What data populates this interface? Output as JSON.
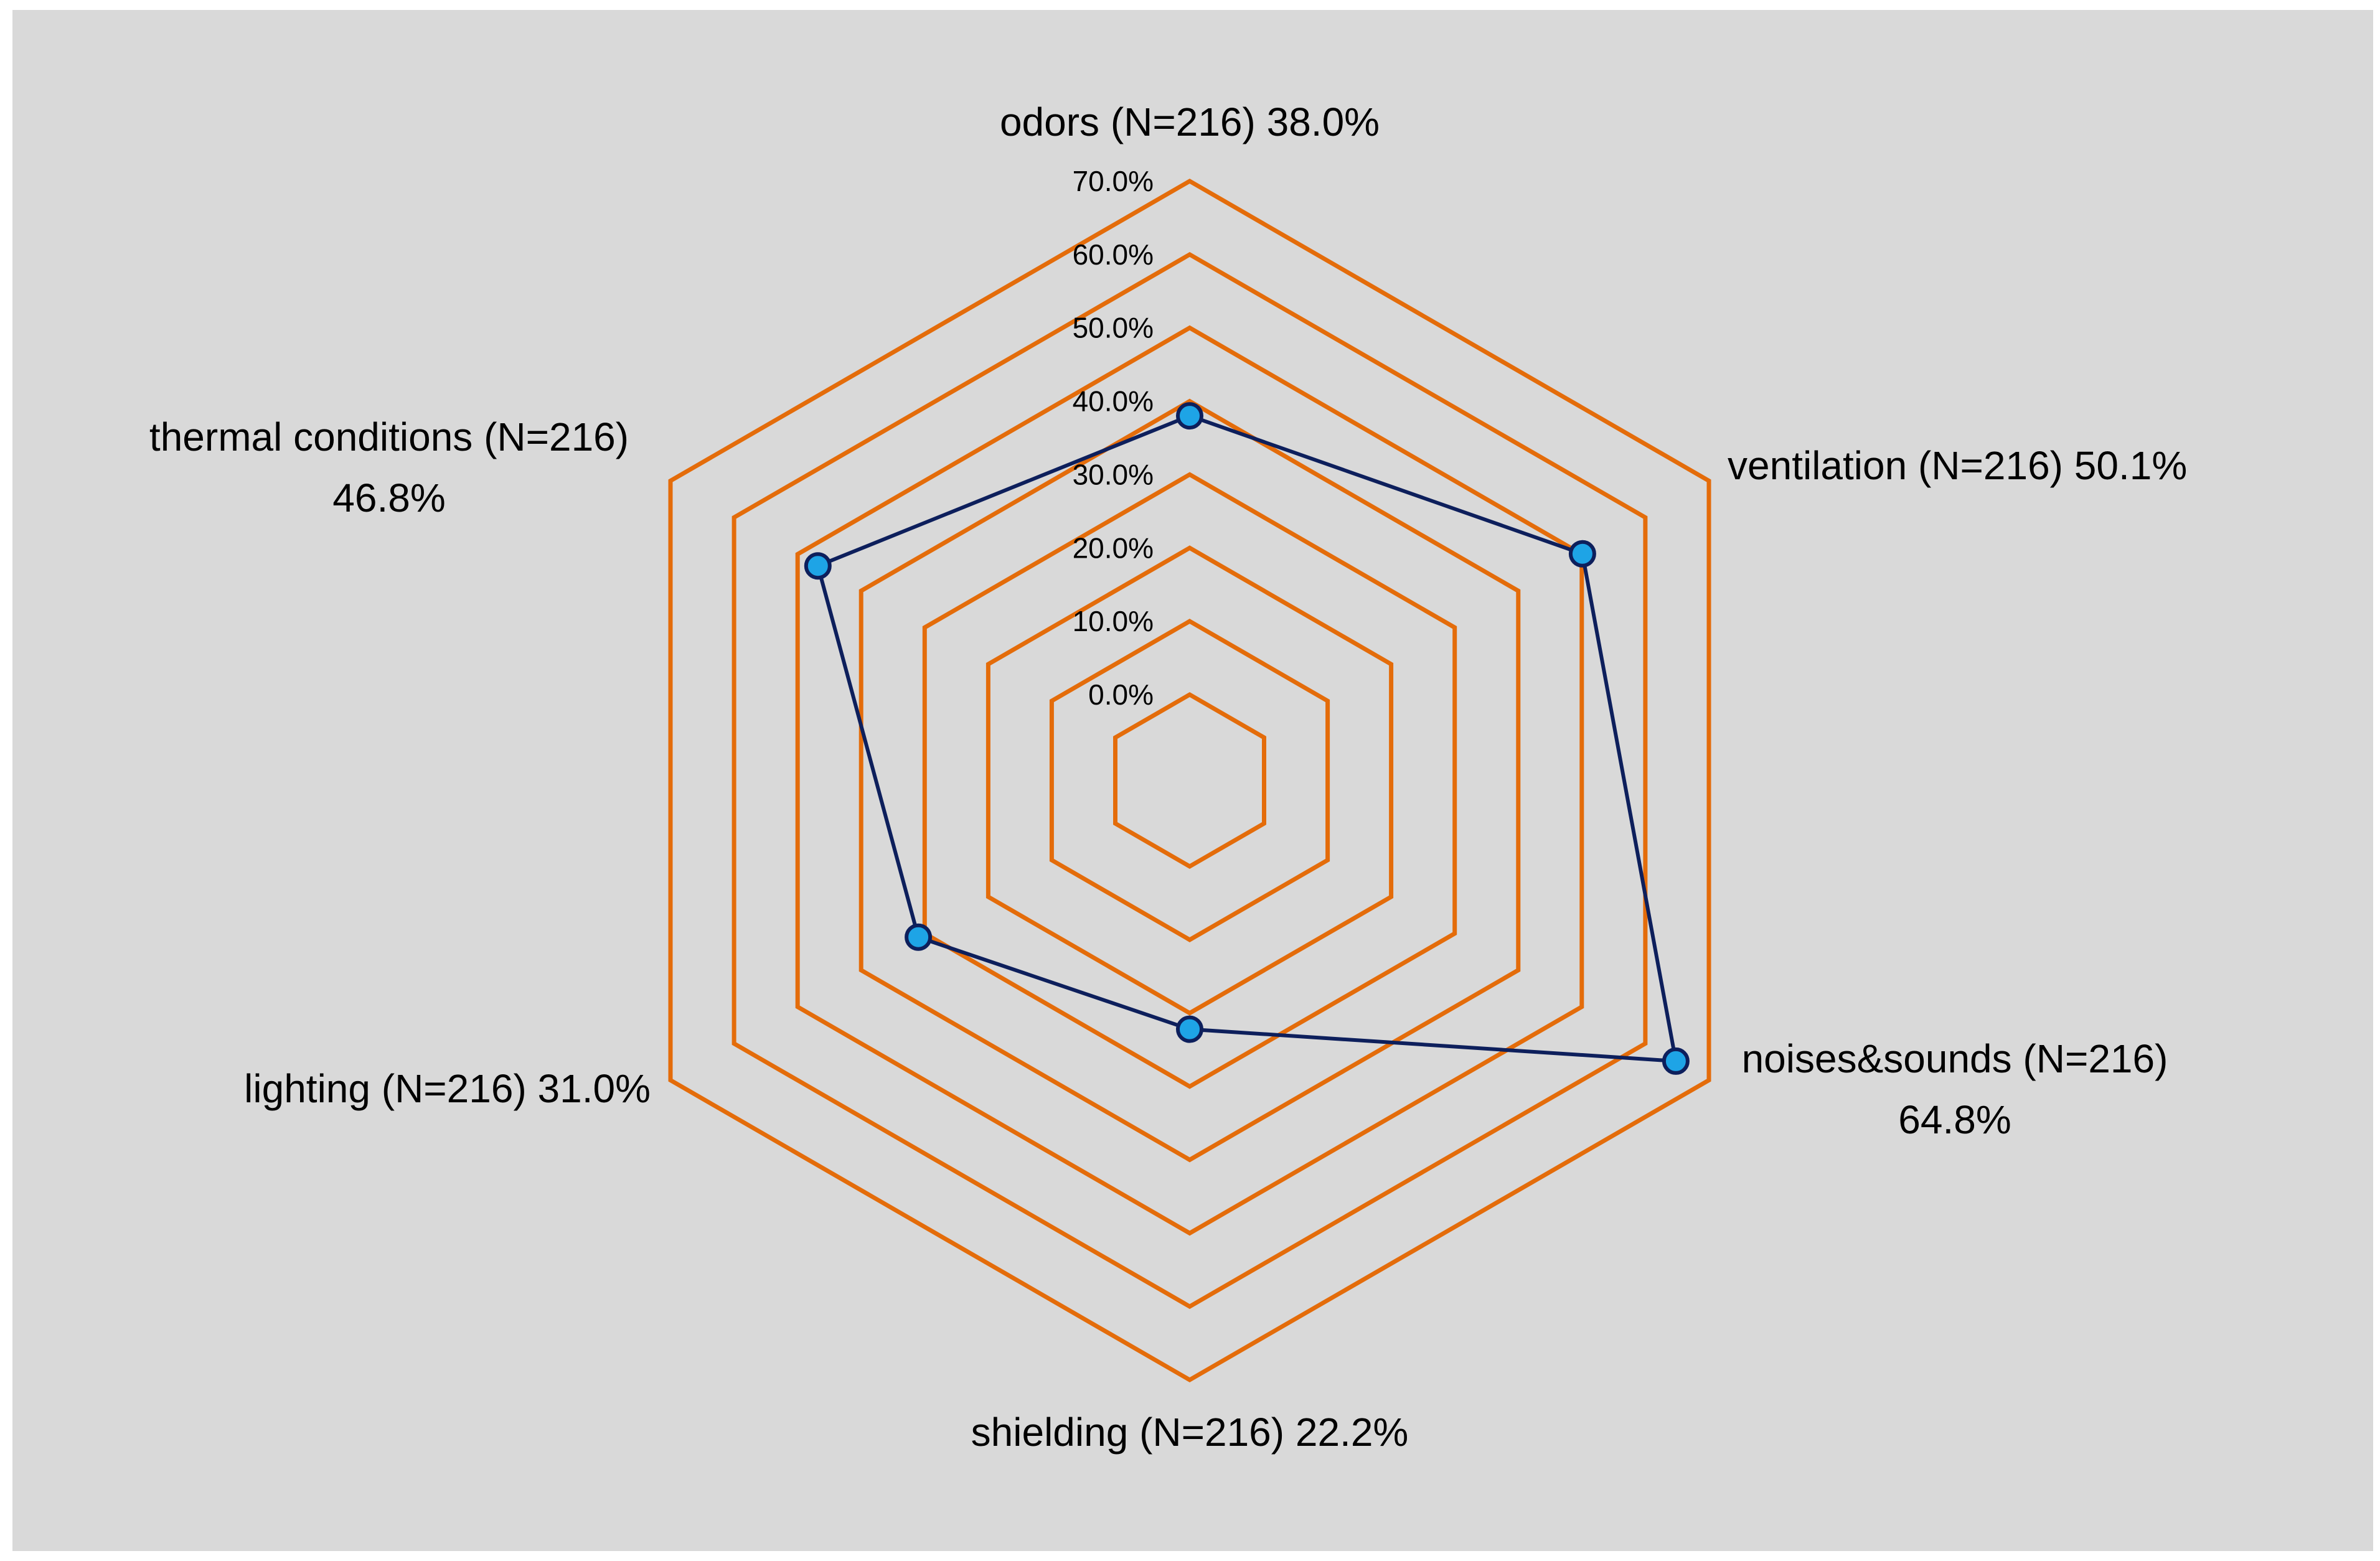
{
  "chart_data": {
    "type": "radar",
    "title": "",
    "categories": [
      "odors (N=216)",
      "ventilation (N=216)",
      "noises&sounds (N=216)",
      "shielding (N=216)",
      "lighting (N=216)",
      "thermal conditions (N=216)"
    ],
    "category_labels": [
      [
        "odors (N=216) 38.0%"
      ],
      [
        "ventilation (N=216) 50.1%"
      ],
      [
        "noises&sounds (N=216)",
        "64.8%"
      ],
      [
        "shielding (N=216) 22.2%"
      ],
      [
        "lighting (N=216) 31.0%"
      ],
      [
        "thermal conditions (N=216)",
        "46.8%"
      ]
    ],
    "values": [
      38.0,
      50.1,
      64.8,
      22.2,
      31.0,
      46.8
    ],
    "value_unit": "%",
    "rlim": [
      0,
      70
    ],
    "ticks": [
      0,
      10,
      20,
      30,
      40,
      50,
      60,
      70
    ],
    "tick_labels": [
      "0.0%",
      "10.0%",
      "20.0%",
      "30.0%",
      "40.0%",
      "50.0%",
      "60.0%",
      "70.0%"
    ],
    "grid": true,
    "legend": "none",
    "colors": {
      "background": "#d9d9d9",
      "grid": "#e46c0a",
      "series_line": "#0d1f5c",
      "marker_fill": "#1ea4e6",
      "marker_edge": "#0d1f5c"
    }
  }
}
